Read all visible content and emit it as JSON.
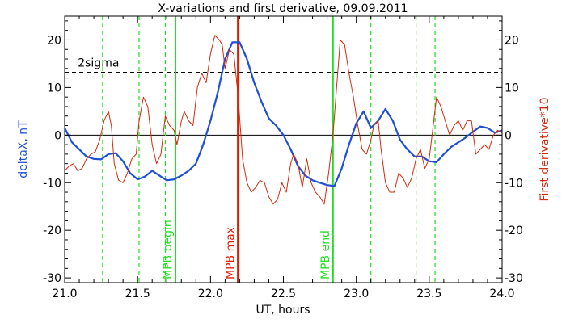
{
  "chart_data": {
    "type": "line",
    "title": "X-variations and first derivative, 09.09.2011",
    "xlabel": "UT, hours",
    "ylabel_left": "deltaX, nT",
    "ylabel_right": "First derivative*10",
    "xlim": [
      21.0,
      24.0
    ],
    "ylim": [
      -31,
      25
    ],
    "x_ticks": [
      21.0,
      21.5,
      22.0,
      22.5,
      23.0,
      23.5,
      24.0
    ],
    "x_tick_labels": [
      "21.0",
      "21.5",
      "22.0",
      "22.5",
      "23.0",
      "23.5",
      "24.0"
    ],
    "y_ticks": [
      20,
      10,
      0,
      -10,
      -20,
      -30
    ],
    "y_tick_labels": [
      "20",
      "10",
      "0",
      "-10",
      "-20",
      "-30"
    ],
    "grid": false,
    "colors": {
      "deltaX": "#1f4fd6",
      "derivative": "#d42a0c",
      "mpb_boundary": "#22dd22",
      "mpb_max": "#e01c00",
      "threshold": "#000000",
      "zero_line": "#000000"
    },
    "threshold": {
      "label": "2sigma",
      "y": 13.2
    },
    "zero_line": {
      "y": 0
    },
    "vertical_markers": [
      {
        "label": "MPB begin",
        "x": 21.76,
        "style": "solid",
        "color": "#22dd22"
      },
      {
        "label": "MPB max",
        "x": 22.19,
        "style": "solid",
        "color": "#e01c00"
      },
      {
        "label": "MPB end",
        "x": 22.84,
        "style": "solid",
        "color": "#22dd22"
      }
    ],
    "dashed_markers_x": [
      21.26,
      21.51,
      21.69,
      23.1,
      23.41,
      23.54
    ],
    "series": [
      {
        "name": "deltaX, nT",
        "color": "#1f4fd6",
        "points": [
          [
            21.0,
            1.5
          ],
          [
            21.05,
            -1.5
          ],
          [
            21.1,
            -3
          ],
          [
            21.15,
            -4.5
          ],
          [
            21.2,
            -5
          ],
          [
            21.25,
            -5.1
          ],
          [
            21.3,
            -4
          ],
          [
            21.35,
            -3.8
          ],
          [
            21.4,
            -5.5
          ],
          [
            21.45,
            -8
          ],
          [
            21.5,
            -9.3
          ],
          [
            21.55,
            -8.7
          ],
          [
            21.6,
            -7.5
          ],
          [
            21.65,
            -8.5
          ],
          [
            21.7,
            -9.5
          ],
          [
            21.75,
            -9.3
          ],
          [
            21.8,
            -8.5
          ],
          [
            21.85,
            -7.5
          ],
          [
            21.9,
            -6
          ],
          [
            21.95,
            -2
          ],
          [
            22.0,
            3
          ],
          [
            22.05,
            9
          ],
          [
            22.1,
            16
          ],
          [
            22.15,
            19.5
          ],
          [
            22.2,
            19.5
          ],
          [
            22.25,
            16
          ],
          [
            22.3,
            11
          ],
          [
            22.35,
            7
          ],
          [
            22.4,
            3.5
          ],
          [
            22.45,
            2
          ],
          [
            22.5,
            0
          ],
          [
            22.55,
            -3
          ],
          [
            22.6,
            -6.5
          ],
          [
            22.65,
            -8.5
          ],
          [
            22.7,
            -9.5
          ],
          [
            22.75,
            -10
          ],
          [
            22.8,
            -10.5
          ],
          [
            22.85,
            -10.7
          ],
          [
            22.9,
            -7
          ],
          [
            22.95,
            -2
          ],
          [
            23.0,
            2.5
          ],
          [
            23.05,
            5
          ],
          [
            23.1,
            1.5
          ],
          [
            23.15,
            3
          ],
          [
            23.2,
            5.5
          ],
          [
            23.25,
            3
          ],
          [
            23.3,
            -1
          ],
          [
            23.35,
            -3
          ],
          [
            23.4,
            -4.5
          ],
          [
            23.45,
            -4.5
          ],
          [
            23.5,
            -5.5
          ],
          [
            23.55,
            -5.7
          ],
          [
            23.6,
            -4
          ],
          [
            23.65,
            -2.5
          ],
          [
            23.7,
            -1.5
          ],
          [
            23.75,
            -0.5
          ],
          [
            23.8,
            0.7
          ],
          [
            23.85,
            1.8
          ],
          [
            23.9,
            1.5
          ],
          [
            23.95,
            0.5
          ],
          [
            24.0,
            1
          ]
        ]
      },
      {
        "name": "First derivative*10",
        "color": "#d42a0c",
        "points": [
          [
            21.0,
            -7.5
          ],
          [
            21.03,
            -6.5
          ],
          [
            21.06,
            -6
          ],
          [
            21.09,
            -7.5
          ],
          [
            21.12,
            -7
          ],
          [
            21.15,
            -5
          ],
          [
            21.18,
            -4
          ],
          [
            21.21,
            -3.5
          ],
          [
            21.24,
            -1
          ],
          [
            21.27,
            3
          ],
          [
            21.3,
            5
          ],
          [
            21.32,
            2
          ],
          [
            21.34,
            -6
          ],
          [
            21.37,
            -9.5
          ],
          [
            21.4,
            -10
          ],
          [
            21.43,
            -8
          ],
          [
            21.46,
            -5
          ],
          [
            21.49,
            -4
          ],
          [
            21.51,
            3
          ],
          [
            21.54,
            8
          ],
          [
            21.57,
            6
          ],
          [
            21.6,
            -2
          ],
          [
            21.63,
            -6
          ],
          [
            21.66,
            -4
          ],
          [
            21.69,
            4
          ],
          [
            21.72,
            2
          ],
          [
            21.75,
            1
          ],
          [
            21.77,
            -2
          ],
          [
            21.8,
            3
          ],
          [
            21.82,
            5
          ],
          [
            21.85,
            3
          ],
          [
            21.88,
            2
          ],
          [
            21.91,
            10
          ],
          [
            21.94,
            13
          ],
          [
            21.97,
            11
          ],
          [
            22.0,
            17
          ],
          [
            22.03,
            21
          ],
          [
            22.06,
            20
          ],
          [
            22.08,
            19
          ],
          [
            22.1,
            14
          ],
          [
            22.13,
            18
          ],
          [
            22.16,
            17
          ],
          [
            22.19,
            8
          ],
          [
            22.22,
            -5
          ],
          [
            22.25,
            -10
          ],
          [
            22.28,
            -12
          ],
          [
            22.31,
            -11
          ],
          [
            22.34,
            -9.5
          ],
          [
            22.37,
            -10
          ],
          [
            22.4,
            -13
          ],
          [
            22.43,
            -14.5
          ],
          [
            22.46,
            -13.5
          ],
          [
            22.49,
            -10
          ],
          [
            22.52,
            -12
          ],
          [
            22.55,
            -6
          ],
          [
            22.57,
            -4
          ],
          [
            22.6,
            -6
          ],
          [
            22.63,
            -11
          ],
          [
            22.66,
            -5
          ],
          [
            22.69,
            -10
          ],
          [
            22.72,
            -12
          ],
          [
            22.75,
            -13
          ],
          [
            22.78,
            -14.5
          ],
          [
            22.81,
            -8
          ],
          [
            22.84,
            0
          ],
          [
            22.87,
            12
          ],
          [
            22.89,
            20
          ],
          [
            22.92,
            19
          ],
          [
            22.95,
            13
          ],
          [
            22.98,
            8
          ],
          [
            23.01,
            2
          ],
          [
            23.04,
            -3
          ],
          [
            23.07,
            -4
          ],
          [
            23.1,
            -1
          ],
          [
            23.12,
            2
          ],
          [
            23.15,
            3
          ],
          [
            23.17,
            -3
          ],
          [
            23.2,
            -10
          ],
          [
            23.23,
            -12
          ],
          [
            23.26,
            -12
          ],
          [
            23.29,
            -8
          ],
          [
            23.32,
            -9
          ],
          [
            23.35,
            -11
          ],
          [
            23.38,
            -9
          ],
          [
            23.41,
            -5
          ],
          [
            23.44,
            -3
          ],
          [
            23.47,
            -7
          ],
          [
            23.5,
            -5
          ],
          [
            23.52,
            0
          ],
          [
            23.55,
            8
          ],
          [
            23.58,
            6
          ],
          [
            23.61,
            3
          ],
          [
            23.64,
            0
          ],
          [
            23.67,
            2
          ],
          [
            23.7,
            3
          ],
          [
            23.73,
            1
          ],
          [
            23.76,
            3
          ],
          [
            23.79,
            3
          ],
          [
            23.82,
            -4
          ],
          [
            23.85,
            -3
          ],
          [
            23.88,
            -2
          ],
          [
            23.91,
            -3
          ],
          [
            23.94,
            0
          ],
          [
            23.97,
            1
          ],
          [
            24.0,
            0.5
          ]
        ]
      }
    ]
  }
}
